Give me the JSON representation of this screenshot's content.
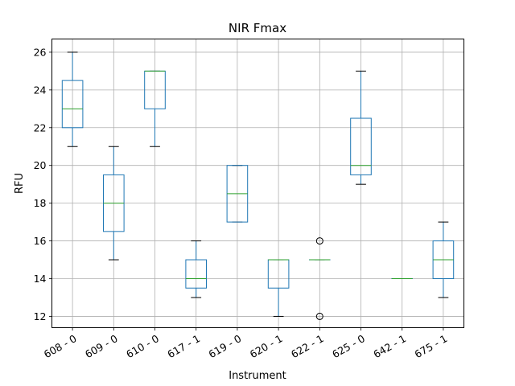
{
  "chart_data": {
    "type": "boxplot",
    "title": "NIR Fmax",
    "xlabel": "Instrument",
    "ylabel": "RFU",
    "ylim": [
      11.4,
      26.7
    ],
    "yticks": [
      12,
      14,
      16,
      18,
      20,
      22,
      24,
      26
    ],
    "grid": true,
    "categories": [
      "608 - 0",
      "609 - 0",
      "610 - 0",
      "617 - 1",
      "619 - 0",
      "620 - 1",
      "622 - 1",
      "625 - 0",
      "642 - 1",
      "675 - 1"
    ],
    "boxes": [
      {
        "whislo": 21,
        "q1": 22,
        "med": 23,
        "q3": 24.5,
        "whishi": 26,
        "fliers": []
      },
      {
        "whislo": 15,
        "q1": 16.5,
        "med": 18,
        "q3": 19.5,
        "whishi": 21,
        "fliers": []
      },
      {
        "whislo": 21,
        "q1": 23,
        "med": 25,
        "q3": 25,
        "whishi": 25,
        "fliers": []
      },
      {
        "whislo": 13,
        "q1": 13.5,
        "med": 14,
        "q3": 15,
        "whishi": 16,
        "fliers": []
      },
      {
        "whislo": 17,
        "q1": 17,
        "med": 18.5,
        "q3": 20,
        "whishi": 20,
        "fliers": []
      },
      {
        "whislo": 12,
        "q1": 13.5,
        "med": 15,
        "q3": 15,
        "whishi": 15,
        "fliers": []
      },
      {
        "whislo": 15,
        "q1": 15,
        "med": 15,
        "q3": 15,
        "whishi": 15,
        "fliers": [
          16,
          12
        ]
      },
      {
        "whislo": 19,
        "q1": 19.5,
        "med": 20,
        "q3": 22.5,
        "whishi": 25,
        "fliers": []
      },
      {
        "whislo": 14,
        "q1": 14,
        "med": 14,
        "q3": 14,
        "whishi": 14,
        "fliers": []
      },
      {
        "whislo": 13,
        "q1": 14,
        "med": 15,
        "q3": 16,
        "whishi": 17,
        "fliers": []
      }
    ],
    "colors": {
      "box": "#1f77b4",
      "median": "#2ca02c",
      "whisker": "#000000",
      "grid": "#b0b0b0"
    }
  }
}
